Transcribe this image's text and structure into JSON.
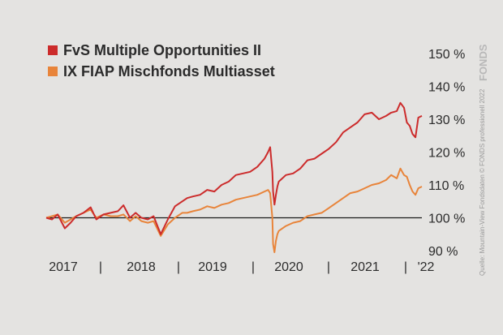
{
  "chart_data": {
    "type": "line",
    "title": "",
    "xlabel": "",
    "ylabel": "",
    "x_tick_labels": [
      "2017",
      "|",
      "2018",
      "|",
      "2019",
      "|",
      "2020",
      "|",
      "2021",
      "|",
      "'22"
    ],
    "y_tick_labels": [
      "150 %",
      "140 %",
      "130 %",
      "120 %",
      "110 %",
      "100 %",
      "90 %"
    ],
    "ylim": [
      90,
      150
    ],
    "reference_line": 100,
    "grid": false,
    "legend_position": "top-left",
    "series": [
      {
        "name": "FvS Multiple Opportunities II",
        "color": "#cc2b2b",
        "x": [
          2017.0,
          2017.08,
          2017.16,
          2017.26,
          2017.34,
          2017.42,
          2017.52,
          2017.62,
          2017.7,
          2017.8,
          2017.9,
          2018.0,
          2018.08,
          2018.17,
          2018.25,
          2018.33,
          2018.42,
          2018.5,
          2018.6,
          2018.7,
          2018.8,
          2018.9,
          2018.97,
          2019.05,
          2019.15,
          2019.25,
          2019.35,
          2019.45,
          2019.55,
          2019.65,
          2019.75,
          2019.85,
          2019.95,
          2020.05,
          2020.1,
          2020.13,
          2020.16,
          2020.17,
          2020.19,
          2020.21,
          2020.23,
          2020.25,
          2020.35,
          2020.45,
          2020.55,
          2020.65,
          2020.75,
          2020.85,
          2020.95,
          2021.05,
          2021.15,
          2021.25,
          2021.35,
          2021.45,
          2021.55,
          2021.65,
          2021.75,
          2021.82,
          2021.9,
          2021.95,
          2022.0,
          2022.04,
          2022.08,
          2022.12,
          2022.16,
          2022.2,
          2022.25
        ],
        "values": [
          100,
          99.5,
          101,
          96.8,
          98.5,
          100.5,
          101.5,
          103.2,
          99.5,
          101,
          101.5,
          102,
          103.8,
          100,
          101.5,
          100,
          99.5,
          100.5,
          95,
          99.5,
          103.5,
          105,
          106,
          106.5,
          107,
          108.5,
          108,
          110,
          111,
          113,
          113.5,
          114,
          115.5,
          118,
          120,
          121.5,
          114,
          108,
          104,
          107,
          109.5,
          111,
          113,
          113.5,
          115,
          117.5,
          118,
          119.5,
          121,
          123,
          126,
          127.5,
          129,
          131.5,
          132,
          130,
          131,
          132,
          132.5,
          135,
          133.5,
          129,
          128,
          125.5,
          124.5,
          130.5,
          131
        ]
      },
      {
        "name": "IX FIAP Mischfonds Multiasset",
        "color": "#e8843a",
        "x": [
          2017.0,
          2017.08,
          2017.16,
          2017.26,
          2017.34,
          2017.42,
          2017.52,
          2017.62,
          2017.7,
          2017.8,
          2017.9,
          2018.0,
          2018.08,
          2018.17,
          2018.25,
          2018.33,
          2018.42,
          2018.5,
          2018.6,
          2018.7,
          2018.8,
          2018.9,
          2018.97,
          2019.05,
          2019.15,
          2019.25,
          2019.35,
          2019.45,
          2019.55,
          2019.65,
          2019.75,
          2019.85,
          2019.95,
          2020.05,
          2020.1,
          2020.13,
          2020.16,
          2020.17,
          2020.19,
          2020.21,
          2020.23,
          2020.25,
          2020.35,
          2020.45,
          2020.55,
          2020.65,
          2020.75,
          2020.85,
          2020.95,
          2021.05,
          2021.15,
          2021.25,
          2021.35,
          2021.45,
          2021.55,
          2021.65,
          2021.75,
          2021.82,
          2021.9,
          2021.95,
          2022.0,
          2022.04,
          2022.08,
          2022.12,
          2022.16,
          2022.2,
          2022.25
        ],
        "values": [
          100,
          100.5,
          101,
          98.5,
          99.5,
          100.5,
          101.5,
          102.5,
          100,
          101,
          100.5,
          100.5,
          101,
          99,
          100.5,
          99,
          98.5,
          99,
          94.5,
          98,
          100,
          101.5,
          101.5,
          102,
          102.5,
          103.5,
          103,
          104,
          104.5,
          105.5,
          106,
          106.5,
          107,
          108,
          108.5,
          107.5,
          100,
          92,
          89.5,
          93,
          95,
          96,
          97.5,
          98.5,
          99,
          100.5,
          101,
          101.5,
          103,
          104.5,
          106,
          107.5,
          108,
          109,
          110,
          110.5,
          111.5,
          113,
          112,
          115,
          113,
          112.5,
          110,
          108,
          107,
          109,
          109.5
        ]
      }
    ]
  },
  "sidebar_text": "Quelle: Mountain-View Fondsdaten   © FONDS professionell 2022",
  "brand_text": "FONDS"
}
